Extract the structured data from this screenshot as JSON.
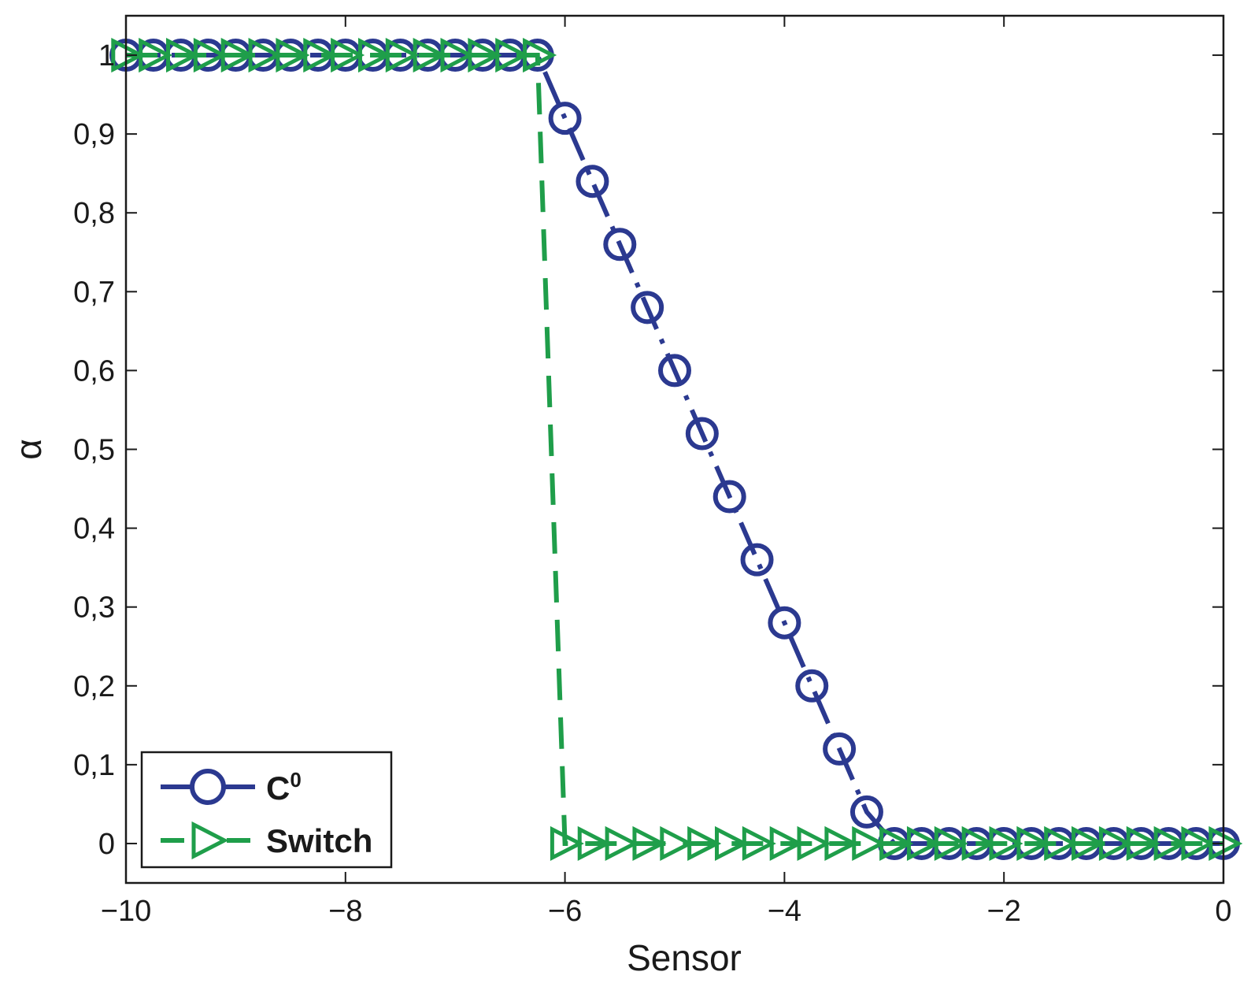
{
  "chart_data": {
    "type": "line",
    "xlabel": "Sensor",
    "ylabel": "α",
    "xlim": [
      -10,
      0
    ],
    "ylim": [
      -0.05,
      1.05
    ],
    "xticks": [
      -10,
      -8,
      -6,
      -4,
      -2,
      0
    ],
    "xtick_labels": [
      "−10",
      "−8",
      "−6",
      "−4",
      "−2",
      "0"
    ],
    "yticks": [
      0,
      0.1,
      0.2,
      0.3,
      0.4,
      0.5,
      0.6,
      0.7,
      0.8,
      0.9,
      1
    ],
    "ytick_labels": [
      "0",
      "0,1",
      "0,2",
      "0,3",
      "0,4",
      "0,5",
      "0,6",
      "0,7",
      "0,8",
      "0,9",
      "1"
    ],
    "grid": false,
    "legend_position": "bottom-left",
    "colors": {
      "c0": "#2b3990",
      "switch": "#1f9e4a"
    },
    "series": [
      {
        "name": "C",
        "name_superscript": "0",
        "marker": "circle",
        "line_style": "dash-dot",
        "x": [
          -10.0,
          -9.75,
          -9.5,
          -9.25,
          -9.0,
          -8.75,
          -8.5,
          -8.25,
          -8.0,
          -7.75,
          -7.5,
          -7.25,
          -7.0,
          -6.75,
          -6.5,
          -6.25,
          -6.0,
          -5.75,
          -5.5,
          -5.25,
          -5.0,
          -4.75,
          -4.5,
          -4.25,
          -4.0,
          -3.75,
          -3.5,
          -3.25,
          -3.0,
          -2.75,
          -2.5,
          -2.25,
          -2.0,
          -1.75,
          -1.5,
          -1.25,
          -1.0,
          -0.75,
          -0.5,
          -0.25,
          0.0
        ],
        "y": [
          1,
          1,
          1,
          1,
          1,
          1,
          1,
          1,
          1,
          1,
          1,
          1,
          1,
          1,
          1,
          1,
          0.92,
          0.84,
          0.76,
          0.68,
          0.6,
          0.52,
          0.44,
          0.36,
          0.28,
          0.2,
          0.12,
          0.04,
          0,
          0,
          0,
          0,
          0,
          0,
          0,
          0,
          0,
          0,
          0,
          0,
          0
        ]
      },
      {
        "name": "Switch",
        "marker": "triangle-right",
        "line_style": "dashed",
        "x": [
          -10.0,
          -9.75,
          -9.5,
          -9.25,
          -9.0,
          -8.75,
          -8.5,
          -8.25,
          -8.0,
          -7.75,
          -7.5,
          -7.25,
          -7.0,
          -6.75,
          -6.5,
          -6.25,
          -6.0,
          -5.75,
          -5.5,
          -5.25,
          -5.0,
          -4.75,
          -4.5,
          -4.25,
          -4.0,
          -3.75,
          -3.5,
          -3.25,
          -3.0,
          -2.75,
          -2.5,
          -2.25,
          -2.0,
          -1.75,
          -1.5,
          -1.25,
          -1.0,
          -0.75,
          -0.5,
          -0.25,
          0.0
        ],
        "y": [
          1,
          1,
          1,
          1,
          1,
          1,
          1,
          1,
          1,
          1,
          1,
          1,
          1,
          1,
          1,
          1,
          0,
          0,
          0,
          0,
          0,
          0,
          0,
          0,
          0,
          0,
          0,
          0,
          0,
          0,
          0,
          0,
          0,
          0,
          0,
          0,
          0,
          0,
          0,
          0,
          0
        ]
      }
    ]
  }
}
